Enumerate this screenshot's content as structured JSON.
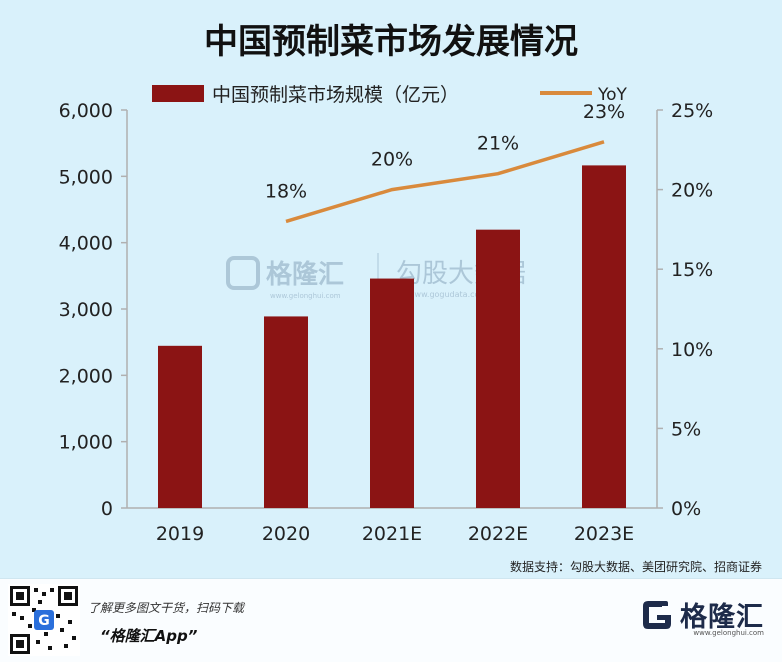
{
  "chart_data": {
    "type": "bar",
    "title": "中国预制菜市场发展情况",
    "categories": [
      "2019",
      "2020",
      "2021E",
      "2022E",
      "2023E"
    ],
    "series": [
      {
        "name": "中国预制菜市场规模（亿元）",
        "type": "bar",
        "axis": "left",
        "color": "#8b1414",
        "values": [
          2445,
          2888,
          3459,
          4196,
          5165
        ]
      },
      {
        "name": "YoY",
        "type": "line",
        "axis": "right",
        "color": "#d98a3c",
        "values": [
          null,
          18,
          20,
          21,
          23
        ],
        "value_labels": [
          "",
          "18%",
          "20%",
          "21%",
          "23%"
        ]
      }
    ],
    "left_axis": {
      "ylim": [
        0,
        6000
      ],
      "ticks": [
        0,
        1000,
        2000,
        3000,
        4000,
        5000,
        6000
      ],
      "tick_labels": [
        "0",
        "1,000",
        "2,000",
        "3,000",
        "4,000",
        "5,000",
        "6,000"
      ]
    },
    "right_axis": {
      "ylim": [
        0,
        25
      ],
      "ticks": [
        0,
        5,
        10,
        15,
        20,
        25
      ],
      "tick_labels": [
        "0%",
        "5%",
        "10%",
        "15%",
        "20%",
        "25%"
      ]
    },
    "legend_position": "top",
    "grid": false
  },
  "watermark": {
    "brand": "格隆汇",
    "brand_url": "www.gelonghui.com",
    "partner": "勾股大数据",
    "partner_url": "www.gogudata.com"
  },
  "source_note": "数据支持：勾股大数据、美团研究院、招商证券",
  "footer": {
    "promo_text": "了解更多图文干货，扫码下载",
    "app_name": "“格隆汇App”",
    "logo_text": "格隆汇",
    "logo_url": "www.gelonghui.com"
  },
  "colors": {
    "background": "#d9f1fb",
    "bar": "#8b1414",
    "line": "#d98a3c",
    "axis": "#b0b0b0"
  }
}
